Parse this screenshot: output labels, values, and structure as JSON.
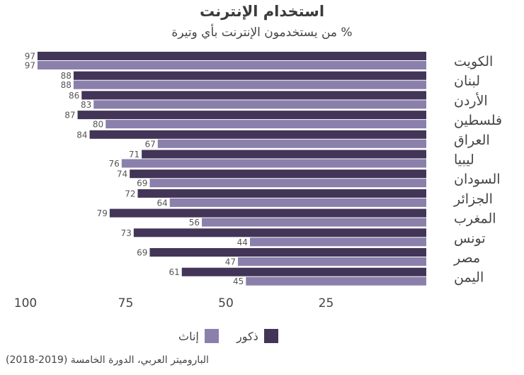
{
  "title": "استخدام الإنترنت",
  "subtitle": "% من يستخدمون الإنترنت بأي وتيرة",
  "source": "الباروميتر العربي، الدورة الخامسة (2019-2018)",
  "colors": {
    "male": "#433558",
    "female": "#8b80ab"
  },
  "chart_data": {
    "type": "bar",
    "orientation": "horizontal",
    "axis_direction": "reversed",
    "categories": [
      "الكويت",
      "لبنان",
      "الأردن",
      "فلسطين",
      "العراق",
      "ليبيا",
      "السودان",
      "الجزائر",
      "المغرب",
      "تونس",
      "مصر",
      "اليمن"
    ],
    "series": [
      {
        "name": "ذكور",
        "values": [
          97,
          88,
          86,
          87,
          84,
          71,
          74,
          72,
          79,
          73,
          69,
          61
        ]
      },
      {
        "name": "إناث",
        "values": [
          97,
          88,
          83,
          80,
          67,
          76,
          69,
          64,
          56,
          44,
          47,
          45
        ]
      }
    ],
    "xlim": [
      0,
      100
    ],
    "xticks": [
      100,
      75,
      50,
      25
    ],
    "grid": false,
    "legend": "bottom-center"
  }
}
